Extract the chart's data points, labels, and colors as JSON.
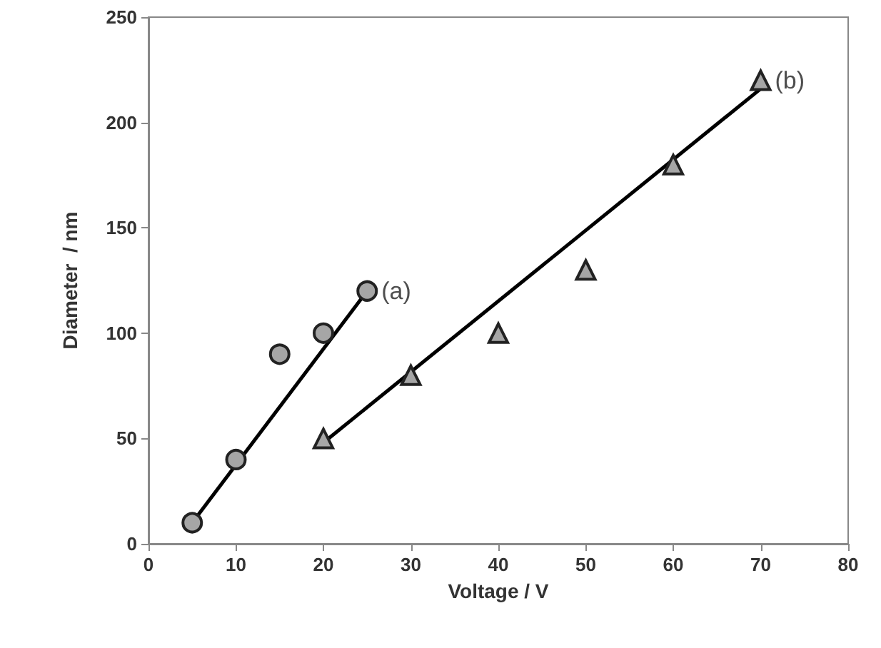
{
  "chart_data": {
    "type": "scatter",
    "xlabel": "Voltage / V",
    "ylabel": "Diameter  / nm",
    "xlim": [
      0,
      80
    ],
    "xticks": [
      0,
      10,
      20,
      30,
      40,
      50,
      60,
      70,
      80
    ],
    "ylim": [
      0,
      250
    ],
    "yticks": [
      0,
      50,
      100,
      150,
      200,
      250
    ],
    "grid": false,
    "series": [
      {
        "type": "scatter",
        "marker": "circle",
        "color": "#a6a6a6",
        "x": [
          5,
          10,
          15,
          20,
          25
        ],
        "values": [
          10,
          40,
          90,
          100,
          120
        ]
      },
      {
        "type": "scatter",
        "marker": "triangle",
        "color": "#a6a6a6",
        "x": [
          20,
          30,
          40,
          50,
          60,
          70
        ],
        "values": [
          50,
          80,
          100,
          130,
          180,
          220
        ]
      },
      {
        "type": "line",
        "marker": "none",
        "color": "#000000",
        "x": [
          5,
          25
        ],
        "values": [
          10,
          120
        ]
      },
      {
        "type": "line",
        "marker": "none",
        "color": "#000000",
        "x": [
          20,
          70
        ],
        "values": [
          48,
          216
        ]
      }
    ],
    "annotations": [
      {
        "text": "(a)",
        "x": 25,
        "y": 120
      },
      {
        "text": "(b)",
        "x": 70,
        "y": 220
      }
    ]
  }
}
